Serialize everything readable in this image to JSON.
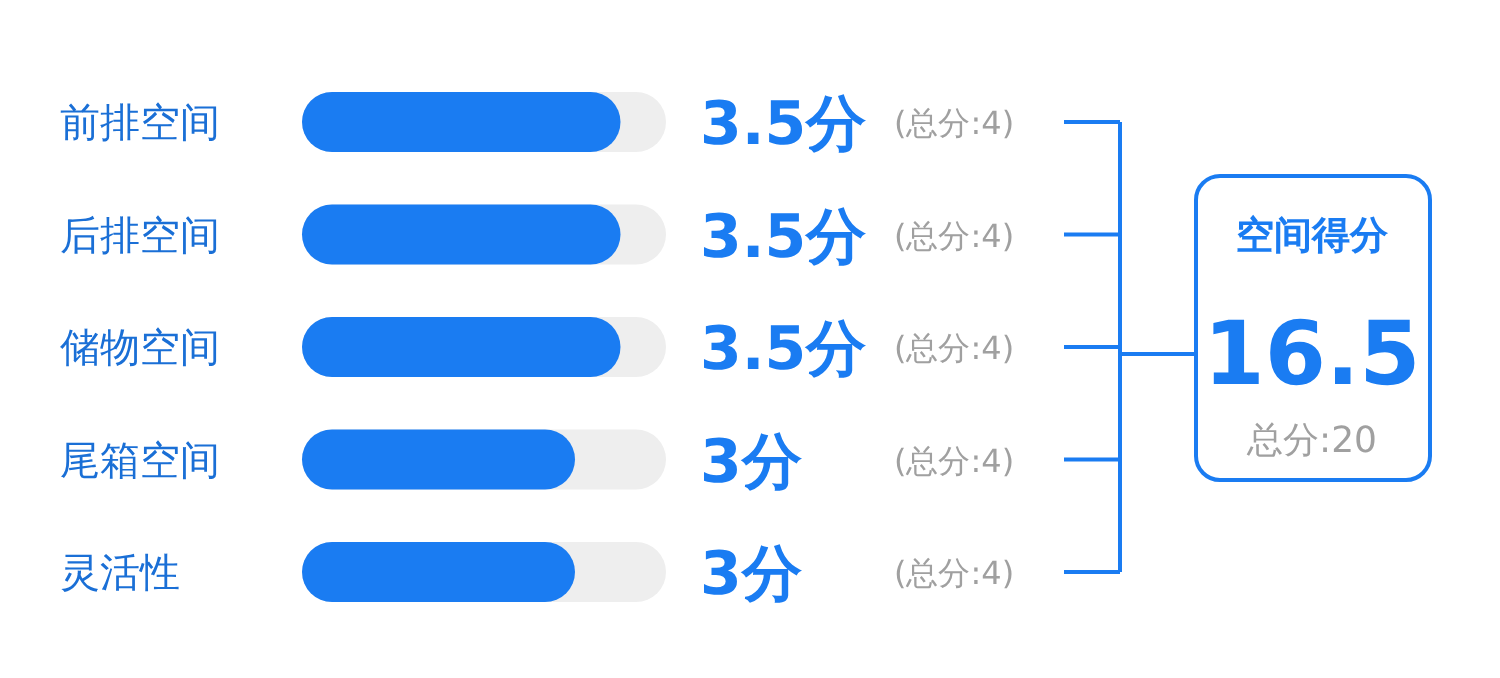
{
  "chart_data": {
    "type": "bar",
    "orientation": "horizontal",
    "categories": [
      "前排空间",
      "后排空间",
      "储物空间",
      "尾箱空间",
      "灵活性"
    ],
    "values": [
      3.5,
      3.5,
      3.5,
      3,
      3
    ],
    "color": "#1a7cf2",
    "xlim": [
      0,
      4
    ],
    "value_labels": [
      "3.5分",
      "3.5分",
      "3.5分",
      "3分",
      "3分"
    ],
    "annotations": [
      "(总分:4)",
      "(总分:4)",
      "(总分:4)",
      "(总分:4)",
      "(总分:4)",
      "空间得分",
      "16.5",
      "总分:20"
    ]
  }
}
